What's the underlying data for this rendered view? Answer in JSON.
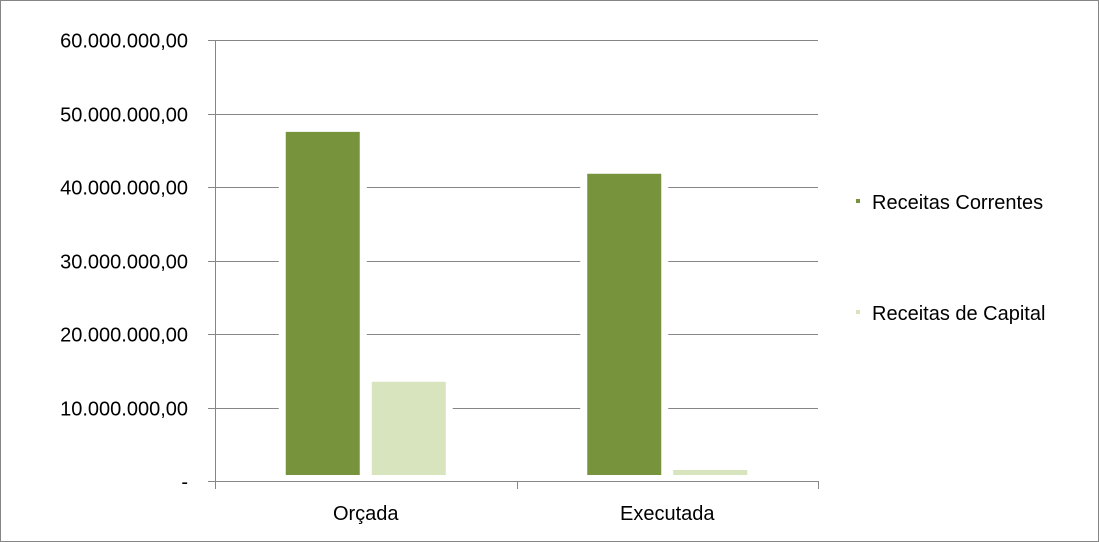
{
  "chart_data": {
    "type": "bar",
    "categories": [
      "Orçada",
      "Executada"
    ],
    "series": [
      {
        "name": "Receitas Correntes",
        "color": "#77933C",
        "values": [
          47500000,
          41800000
        ]
      },
      {
        "name": "Receitas de Capital",
        "color": "#D7E4BD",
        "values": [
          13500000,
          1500000
        ]
      }
    ],
    "ylim": [
      0,
      60000000
    ],
    "yticks": [
      0,
      10000000,
      20000000,
      30000000,
      40000000,
      50000000,
      60000000
    ],
    "ytick_labels": [
      "-",
      "10.000.000,00",
      "20.000.000,00",
      "30.000.000,00",
      "40.000.000,00",
      "50.000.000,00",
      "60.000.000,00"
    ],
    "grid": true,
    "legend_position": "right",
    "title": "",
    "xlabel": "",
    "ylabel": ""
  }
}
